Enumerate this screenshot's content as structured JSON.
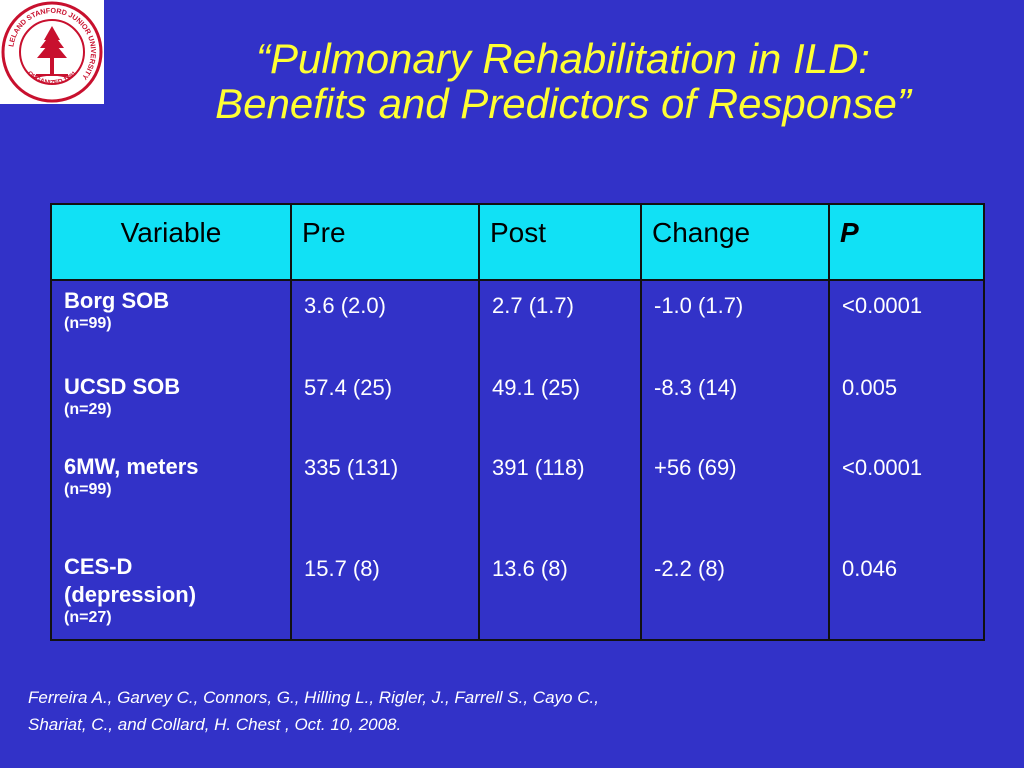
{
  "logo": {
    "seal_text": "LELAND STANFORD JUNIOR UNIVERSITY",
    "founded_text": "ORGANIZED 1891",
    "colors": {
      "ring": "#c8102e",
      "tree": "#c8102e",
      "background": "#ffffff"
    }
  },
  "title": {
    "line1": "“Pulmonary Rehabilitation in ILD:",
    "line2": "Benefits and Predictors of Response”"
  },
  "table": {
    "headers": {
      "variable": "Variable",
      "pre": "Pre",
      "post": "Post",
      "change": "Change",
      "p": "P"
    },
    "rows": [
      {
        "name": "Borg SOB",
        "n": "(n=99)",
        "pre": "3.6 (2.0)",
        "post": "2.7 (1.7)",
        "change": "-1.0 (1.7)",
        "p": "<0.0001"
      },
      {
        "name": "UCSD SOB",
        "n": "(n=29)",
        "pre": "57.4 (25)",
        "post": "49.1 (25)",
        "change": "-8.3 (14)",
        "p": "0.005"
      },
      {
        "name": "6MW, meters",
        "n": "(n=99)",
        "pre": "335 (131)",
        "post": "391 (118)",
        "change": "+56 (69)",
        "p": "<0.0001"
      },
      {
        "name": "CES-D (depression)",
        "n": "(n=27)",
        "pre": "15.7 (8)",
        "post": "13.6 (8)",
        "change": "-2.2 (8)",
        "p": "0.046"
      }
    ]
  },
  "citation": {
    "line1": "Ferreira A., Garvey C., Connors, G., Hilling L., Rigler, J., Farrell S., Cayo C.,",
    "line2": "Shariat, C., and Collard, H.  Chest , Oct. 10, 2008."
  },
  "colors": {
    "background": "#3232c8",
    "title": "#ffff33",
    "header_fill": "#11e1f5",
    "text": "#ffffff"
  }
}
